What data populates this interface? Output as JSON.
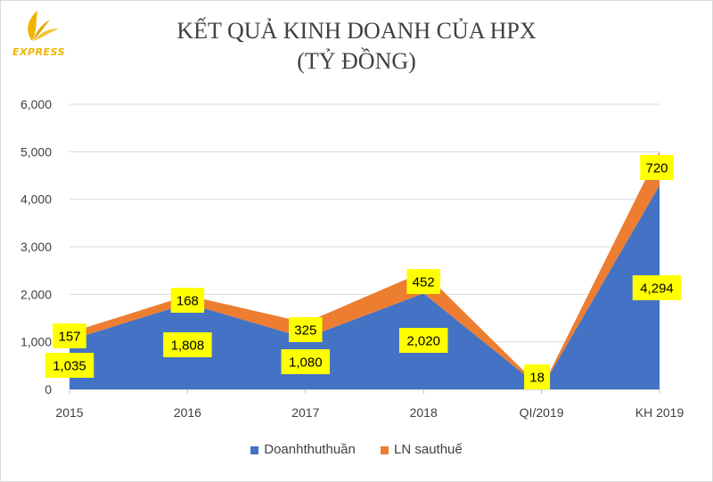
{
  "title_line1": "KẾT QUẢ KINH DOANH CỦA HPX",
  "title_line2": "(TỶ ĐỒNG)",
  "logo": {
    "text": "EXPRESS",
    "icon": "gold-leaf-icon",
    "color": "#f0b400"
  },
  "chart_data": {
    "type": "area",
    "stacked": true,
    "categories": [
      "2015",
      "2016",
      "2017",
      "2018",
      "QI/2019",
      "KH 2019"
    ],
    "series": [
      {
        "name": "Doanhthuthuần",
        "color": "#4472c4",
        "values": [
          1035,
          1808,
          1080,
          2020,
          18,
          4294
        ],
        "labels": [
          "1,035",
          "1,808",
          "1,080",
          "2,020",
          "18",
          "4,294"
        ]
      },
      {
        "name": "LN sauthuế",
        "color": "#ed7d31",
        "values": [
          157,
          168,
          325,
          452,
          0,
          720
        ],
        "labels": [
          "157",
          "168",
          "325",
          "452",
          "",
          "720"
        ]
      }
    ],
    "ylim": [
      0,
      6000
    ],
    "yticks": [
      "0",
      "1,000",
      "2,000",
      "3,000",
      "4,000",
      "5,000",
      "6,000"
    ],
    "ytick_values": [
      0,
      1000,
      2000,
      3000,
      4000,
      5000,
      6000
    ],
    "grid": true,
    "legend_position": "bottom",
    "label_background": "#ffff00"
  }
}
